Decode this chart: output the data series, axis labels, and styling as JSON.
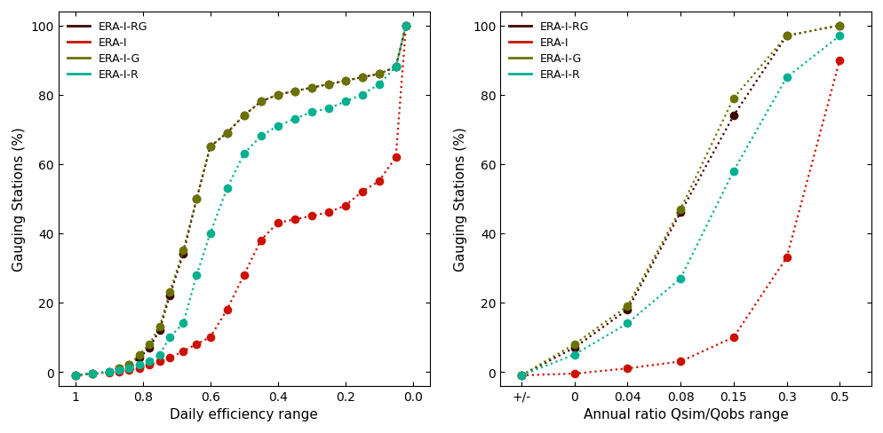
{
  "colors": {
    "ERA-I-RG": "#3d0000",
    "ERA-I": "#cc1100",
    "ERA-I-G": "#6b7300",
    "ERA-I-R": "#00b090"
  },
  "legend_order": [
    "ERA-I-RG",
    "ERA-I",
    "ERA-I-G",
    "ERA-I-R"
  ],
  "left": {
    "xlabel": "Daily efficiency range",
    "ylabel": "Gauging Stations (%)",
    "xtick_vals": [
      1.0,
      0.8,
      0.6,
      0.4,
      0.2,
      0.0
    ],
    "xtick_labels": [
      "1",
      "0.8",
      "0.6",
      "0.4",
      "0.2",
      "0.0"
    ],
    "yticks": [
      0,
      20,
      40,
      60,
      80,
      100
    ],
    "xlim": [
      1.05,
      -0.05
    ],
    "ylim": [
      -4,
      104
    ],
    "series": {
      "ERA-I-RG": {
        "x": [
          1.0,
          0.95,
          0.9,
          0.87,
          0.84,
          0.81,
          0.78,
          0.75,
          0.72,
          0.68,
          0.64,
          0.6,
          0.55,
          0.5,
          0.45,
          0.4,
          0.35,
          0.3,
          0.25,
          0.2,
          0.15,
          0.1,
          0.05,
          0.02
        ],
        "y": [
          -1,
          -0.5,
          0,
          1,
          2,
          4,
          7,
          12,
          22,
          34,
          50,
          65,
          69,
          74,
          78,
          80,
          81,
          82,
          83,
          84,
          85,
          86,
          88,
          100
        ]
      },
      "ERA-I": {
        "x": [
          1.0,
          0.95,
          0.9,
          0.87,
          0.84,
          0.81,
          0.78,
          0.75,
          0.72,
          0.68,
          0.64,
          0.6,
          0.55,
          0.5,
          0.45,
          0.4,
          0.35,
          0.3,
          0.25,
          0.2,
          0.15,
          0.1,
          0.05,
          0.02
        ],
        "y": [
          -1,
          -0.5,
          -0.2,
          0,
          0.5,
          1,
          2,
          3,
          4,
          6,
          8,
          10,
          18,
          28,
          38,
          43,
          44,
          45,
          46,
          48,
          52,
          55,
          62,
          100
        ]
      },
      "ERA-I-G": {
        "x": [
          1.0,
          0.95,
          0.9,
          0.87,
          0.84,
          0.81,
          0.78,
          0.75,
          0.72,
          0.68,
          0.64,
          0.6,
          0.55,
          0.5,
          0.45,
          0.4,
          0.35,
          0.3,
          0.25,
          0.2,
          0.15,
          0.1,
          0.05,
          0.02
        ],
        "y": [
          -1,
          -0.5,
          0,
          1,
          2,
          5,
          8,
          13,
          23,
          35,
          50,
          65,
          69,
          74,
          78,
          80,
          81,
          82,
          83,
          84,
          85,
          86,
          88,
          100
        ]
      },
      "ERA-I-R": {
        "x": [
          1.0,
          0.95,
          0.9,
          0.87,
          0.84,
          0.81,
          0.78,
          0.75,
          0.72,
          0.68,
          0.64,
          0.6,
          0.55,
          0.5,
          0.45,
          0.4,
          0.35,
          0.3,
          0.25,
          0.2,
          0.15,
          0.1,
          0.05,
          0.02
        ],
        "y": [
          -1,
          -0.5,
          0,
          0.5,
          1,
          2,
          3,
          5,
          10,
          14,
          28,
          40,
          53,
          63,
          68,
          71,
          73,
          75,
          76,
          78,
          80,
          83,
          88,
          100
        ]
      }
    }
  },
  "right": {
    "xlabel": "Annual ratio Qsim/Qobs range",
    "ylabel": "Gauging Stations (%)",
    "xtick_pos": [
      0,
      1,
      2,
      3,
      4,
      5,
      6
    ],
    "xtick_labels": [
      "+/-",
      "0",
      "0.04",
      "0.08",
      "0.15",
      "0.3",
      "0.5"
    ],
    "yticks": [
      0,
      20,
      40,
      60,
      80,
      100
    ],
    "xlim": [
      -0.4,
      6.6
    ],
    "ylim": [
      -4,
      104
    ],
    "series": {
      "ERA-I-RG": {
        "x": [
          0,
          1,
          2,
          3,
          4,
          5,
          6
        ],
        "y": [
          -1,
          7,
          18,
          46,
          74,
          97,
          100
        ]
      },
      "ERA-I": {
        "x": [
          0,
          1,
          2,
          3,
          4,
          5,
          6
        ],
        "y": [
          -1,
          -0.5,
          1,
          3,
          10,
          33,
          90
        ]
      },
      "ERA-I-G": {
        "x": [
          0,
          1,
          2,
          3,
          4,
          5,
          6
        ],
        "y": [
          -1,
          8,
          19,
          47,
          79,
          97,
          100
        ]
      },
      "ERA-I-R": {
        "x": [
          0,
          1,
          2,
          3,
          4,
          5,
          6
        ],
        "y": [
          -1,
          5,
          14,
          27,
          58,
          85,
          97
        ]
      }
    }
  }
}
